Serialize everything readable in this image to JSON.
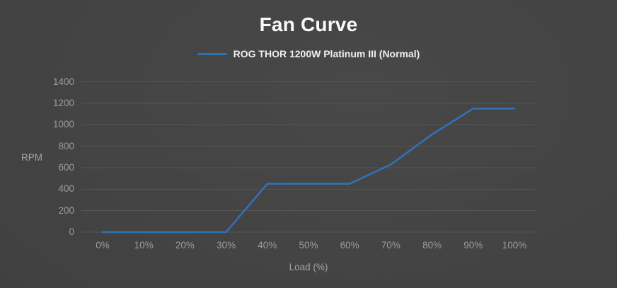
{
  "header": {
    "title": "Fan Curve"
  },
  "legend": {
    "items": [
      {
        "label": "ROG THOR 1200W Platinum III (Normal)",
        "color": "#3270b5"
      }
    ]
  },
  "chart_data": {
    "type": "line",
    "title": "Fan Curve",
    "xlabel": "Load (%)",
    "ylabel": "RPM",
    "categories": [
      "0%",
      "10%",
      "20%",
      "30%",
      "40%",
      "50%",
      "60%",
      "70%",
      "80%",
      "90%",
      "100%"
    ],
    "x_numeric": [
      0,
      10,
      20,
      30,
      40,
      50,
      60,
      70,
      80,
      90,
      100
    ],
    "series": [
      {
        "name": "ROG THOR 1200W Platinum III (Normal)",
        "color": "#3270b5",
        "values": [
          0,
          0,
          0,
          0,
          450,
          450,
          450,
          630,
          910,
          1150,
          1150
        ]
      }
    ],
    "ylim": [
      0,
      1400
    ],
    "yticks": [
      0,
      200,
      400,
      600,
      800,
      1000,
      1200,
      1400
    ],
    "grid": "horizontal-only",
    "gridline_color": "#555555",
    "legend_position": "top-center",
    "background_color": "#424242"
  }
}
